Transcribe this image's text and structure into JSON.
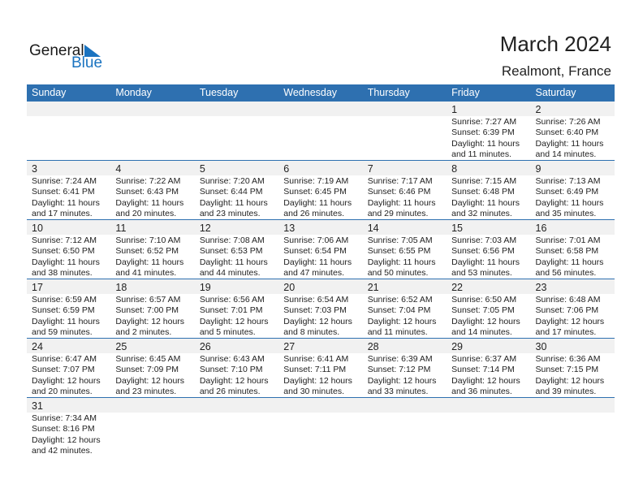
{
  "logo": {
    "text1": "General",
    "text2": "Blue"
  },
  "title": "March 2024",
  "location": "Realmont, France",
  "colors": {
    "header": "#2e70b0",
    "accent": "#1a73c0"
  },
  "weekdays": [
    "Sunday",
    "Monday",
    "Tuesday",
    "Wednesday",
    "Thursday",
    "Friday",
    "Saturday"
  ],
  "first_weekday_index": 5,
  "days": [
    {
      "day": "1",
      "sunrise": "Sunrise: 7:27 AM",
      "sunset": "Sunset: 6:39 PM",
      "daylight1": "Daylight: 11 hours",
      "daylight2": "and 11 minutes."
    },
    {
      "day": "2",
      "sunrise": "Sunrise: 7:26 AM",
      "sunset": "Sunset: 6:40 PM",
      "daylight1": "Daylight: 11 hours",
      "daylight2": "and 14 minutes."
    },
    {
      "day": "3",
      "sunrise": "Sunrise: 7:24 AM",
      "sunset": "Sunset: 6:41 PM",
      "daylight1": "Daylight: 11 hours",
      "daylight2": "and 17 minutes."
    },
    {
      "day": "4",
      "sunrise": "Sunrise: 7:22 AM",
      "sunset": "Sunset: 6:43 PM",
      "daylight1": "Daylight: 11 hours",
      "daylight2": "and 20 minutes."
    },
    {
      "day": "5",
      "sunrise": "Sunrise: 7:20 AM",
      "sunset": "Sunset: 6:44 PM",
      "daylight1": "Daylight: 11 hours",
      "daylight2": "and 23 minutes."
    },
    {
      "day": "6",
      "sunrise": "Sunrise: 7:19 AM",
      "sunset": "Sunset: 6:45 PM",
      "daylight1": "Daylight: 11 hours",
      "daylight2": "and 26 minutes."
    },
    {
      "day": "7",
      "sunrise": "Sunrise: 7:17 AM",
      "sunset": "Sunset: 6:46 PM",
      "daylight1": "Daylight: 11 hours",
      "daylight2": "and 29 minutes."
    },
    {
      "day": "8",
      "sunrise": "Sunrise: 7:15 AM",
      "sunset": "Sunset: 6:48 PM",
      "daylight1": "Daylight: 11 hours",
      "daylight2": "and 32 minutes."
    },
    {
      "day": "9",
      "sunrise": "Sunrise: 7:13 AM",
      "sunset": "Sunset: 6:49 PM",
      "daylight1": "Daylight: 11 hours",
      "daylight2": "and 35 minutes."
    },
    {
      "day": "10",
      "sunrise": "Sunrise: 7:12 AM",
      "sunset": "Sunset: 6:50 PM",
      "daylight1": "Daylight: 11 hours",
      "daylight2": "and 38 minutes."
    },
    {
      "day": "11",
      "sunrise": "Sunrise: 7:10 AM",
      "sunset": "Sunset: 6:52 PM",
      "daylight1": "Daylight: 11 hours",
      "daylight2": "and 41 minutes."
    },
    {
      "day": "12",
      "sunrise": "Sunrise: 7:08 AM",
      "sunset": "Sunset: 6:53 PM",
      "daylight1": "Daylight: 11 hours",
      "daylight2": "and 44 minutes."
    },
    {
      "day": "13",
      "sunrise": "Sunrise: 7:06 AM",
      "sunset": "Sunset: 6:54 PM",
      "daylight1": "Daylight: 11 hours",
      "daylight2": "and 47 minutes."
    },
    {
      "day": "14",
      "sunrise": "Sunrise: 7:05 AM",
      "sunset": "Sunset: 6:55 PM",
      "daylight1": "Daylight: 11 hours",
      "daylight2": "and 50 minutes."
    },
    {
      "day": "15",
      "sunrise": "Sunrise: 7:03 AM",
      "sunset": "Sunset: 6:56 PM",
      "daylight1": "Daylight: 11 hours",
      "daylight2": "and 53 minutes."
    },
    {
      "day": "16",
      "sunrise": "Sunrise: 7:01 AM",
      "sunset": "Sunset: 6:58 PM",
      "daylight1": "Daylight: 11 hours",
      "daylight2": "and 56 minutes."
    },
    {
      "day": "17",
      "sunrise": "Sunrise: 6:59 AM",
      "sunset": "Sunset: 6:59 PM",
      "daylight1": "Daylight: 11 hours",
      "daylight2": "and 59 minutes."
    },
    {
      "day": "18",
      "sunrise": "Sunrise: 6:57 AM",
      "sunset": "Sunset: 7:00 PM",
      "daylight1": "Daylight: 12 hours",
      "daylight2": "and 2 minutes."
    },
    {
      "day": "19",
      "sunrise": "Sunrise: 6:56 AM",
      "sunset": "Sunset: 7:01 PM",
      "daylight1": "Daylight: 12 hours",
      "daylight2": "and 5 minutes."
    },
    {
      "day": "20",
      "sunrise": "Sunrise: 6:54 AM",
      "sunset": "Sunset: 7:03 PM",
      "daylight1": "Daylight: 12 hours",
      "daylight2": "and 8 minutes."
    },
    {
      "day": "21",
      "sunrise": "Sunrise: 6:52 AM",
      "sunset": "Sunset: 7:04 PM",
      "daylight1": "Daylight: 12 hours",
      "daylight2": "and 11 minutes."
    },
    {
      "day": "22",
      "sunrise": "Sunrise: 6:50 AM",
      "sunset": "Sunset: 7:05 PM",
      "daylight1": "Daylight: 12 hours",
      "daylight2": "and 14 minutes."
    },
    {
      "day": "23",
      "sunrise": "Sunrise: 6:48 AM",
      "sunset": "Sunset: 7:06 PM",
      "daylight1": "Daylight: 12 hours",
      "daylight2": "and 17 minutes."
    },
    {
      "day": "24",
      "sunrise": "Sunrise: 6:47 AM",
      "sunset": "Sunset: 7:07 PM",
      "daylight1": "Daylight: 12 hours",
      "daylight2": "and 20 minutes."
    },
    {
      "day": "25",
      "sunrise": "Sunrise: 6:45 AM",
      "sunset": "Sunset: 7:09 PM",
      "daylight1": "Daylight: 12 hours",
      "daylight2": "and 23 minutes."
    },
    {
      "day": "26",
      "sunrise": "Sunrise: 6:43 AM",
      "sunset": "Sunset: 7:10 PM",
      "daylight1": "Daylight: 12 hours",
      "daylight2": "and 26 minutes."
    },
    {
      "day": "27",
      "sunrise": "Sunrise: 6:41 AM",
      "sunset": "Sunset: 7:11 PM",
      "daylight1": "Daylight: 12 hours",
      "daylight2": "and 30 minutes."
    },
    {
      "day": "28",
      "sunrise": "Sunrise: 6:39 AM",
      "sunset": "Sunset: 7:12 PM",
      "daylight1": "Daylight: 12 hours",
      "daylight2": "and 33 minutes."
    },
    {
      "day": "29",
      "sunrise": "Sunrise: 6:37 AM",
      "sunset": "Sunset: 7:14 PM",
      "daylight1": "Daylight: 12 hours",
      "daylight2": "and 36 minutes."
    },
    {
      "day": "30",
      "sunrise": "Sunrise: 6:36 AM",
      "sunset": "Sunset: 7:15 PM",
      "daylight1": "Daylight: 12 hours",
      "daylight2": "and 39 minutes."
    },
    {
      "day": "31",
      "sunrise": "Sunrise: 7:34 AM",
      "sunset": "Sunset: 8:16 PM",
      "daylight1": "Daylight: 12 hours",
      "daylight2": "and 42 minutes."
    }
  ]
}
